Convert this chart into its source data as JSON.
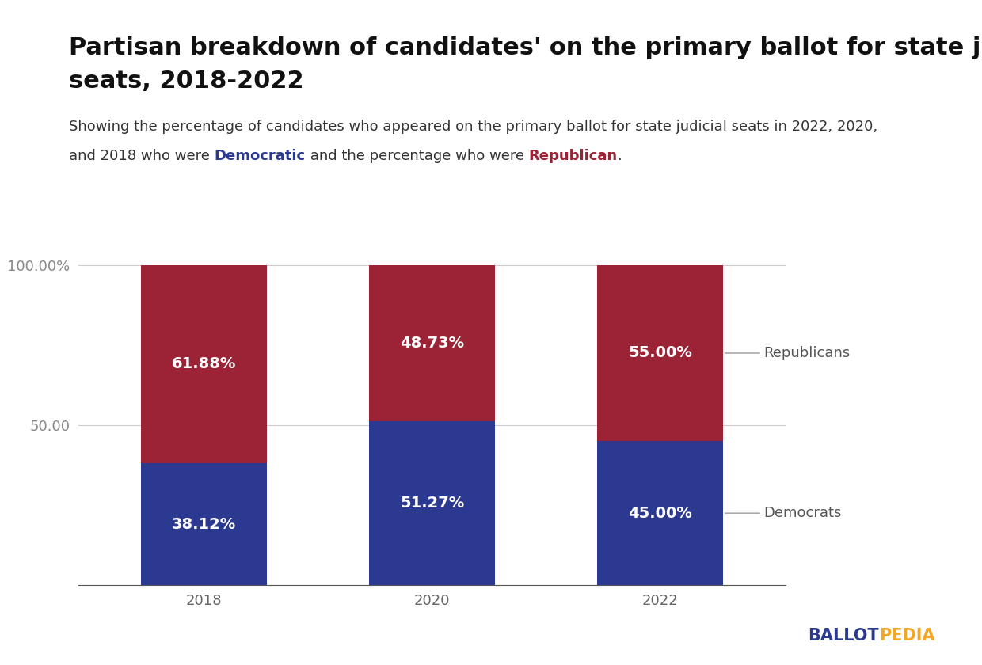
{
  "title_line1": "Partisan breakdown of candidates' on the primary ballot for state judicial",
  "title_line2": "seats, 2018-2022",
  "sub_line1": "Showing the percentage of candidates who appeared on the primary ballot for state judicial seats in 2022, 2020,",
  "sub_line2_pre": "and 2018 who were ",
  "sub_line2_dem": "Democratic",
  "sub_line2_mid": " and the percentage who were ",
  "sub_line2_rep": "Republican",
  "sub_line2_end": ".",
  "years": [
    "2018",
    "2020",
    "2022"
  ],
  "dem_values": [
    38.12,
    51.27,
    45.0
  ],
  "rep_values": [
    61.88,
    48.73,
    55.0
  ],
  "dem_color": "#2b3990",
  "rep_color": "#9b2335",
  "dem_label": "Democrats",
  "rep_label": "Republicans",
  "dem_text_color": "#2b3990",
  "rep_text_color": "#9b2335",
  "ballotpedia_ballot_color": "#2b3990",
  "ballotpedia_pedia_color": "#f5a623",
  "background_color": "#ffffff",
  "title_fontsize": 22,
  "subtitle_fontsize": 13,
  "bar_label_fontsize": 14,
  "tick_fontsize": 13,
  "legend_fontsize": 13,
  "annotation_line_color": "#aaaaaa",
  "bar_width": 0.55
}
